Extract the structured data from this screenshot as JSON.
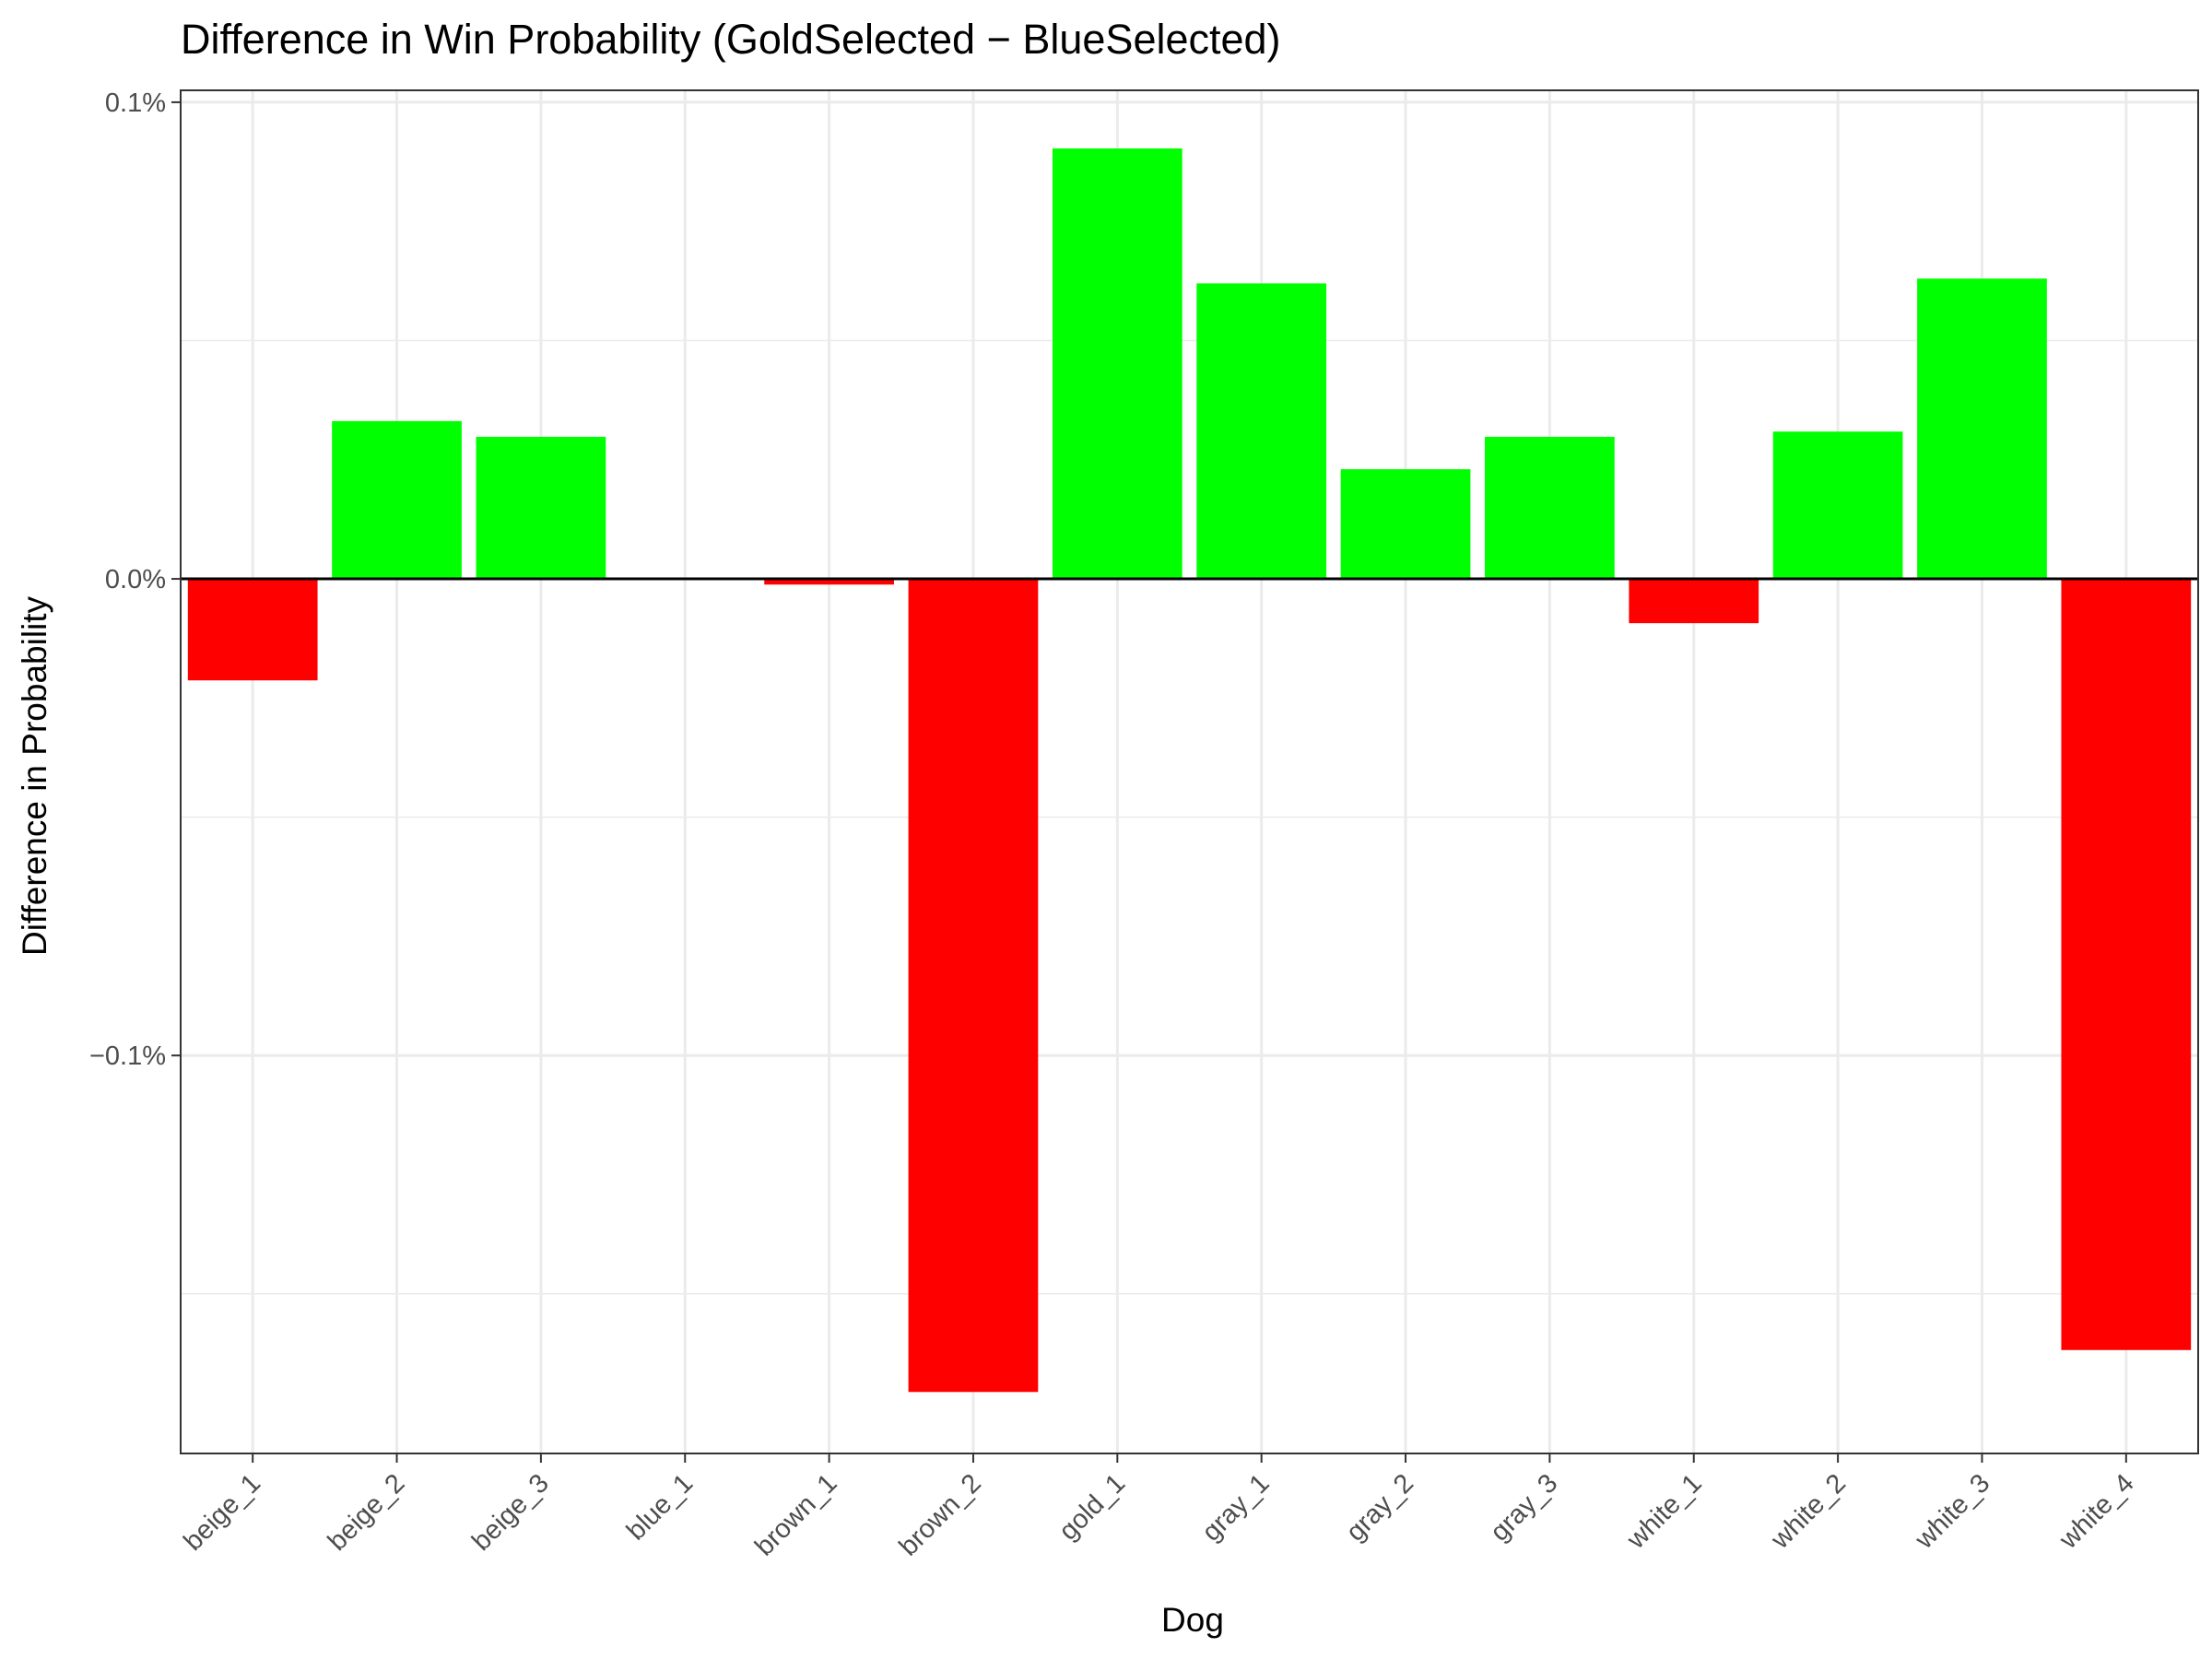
{
  "chart_data": {
    "type": "bar",
    "title": "Difference in Win Probability (GoldSelected − BlueSelected)",
    "xlabel": "Dog",
    "ylabel": "Difference in Probability",
    "categories": [
      "beige_1",
      "beige_2",
      "beige_3",
      "blue_1",
      "brown_1",
      "brown_2",
      "gold_1",
      "gray_1",
      "gray_2",
      "gray_3",
      "white_1",
      "white_2",
      "white_3",
      "white_4"
    ],
    "values": [
      -0.0213,
      0.0331,
      0.0298,
      0.0,
      -0.0012,
      -0.1706,
      0.0903,
      0.062,
      0.023,
      0.0298,
      -0.0093,
      0.0309,
      0.063,
      -0.1618
    ],
    "unit": "%",
    "ylim": [
      -0.1835,
      0.1025
    ],
    "yticks": [
      0.1,
      0.0,
      -0.1
    ],
    "ytick_labels": [
      "0.1%",
      "0.0%",
      "−0.1%"
    ],
    "y_minor_gridlines": [
      0.05,
      -0.05,
      -0.15
    ],
    "grid": true,
    "zero_line": true,
    "positive_color": "#00ff00",
    "negative_color": "#ff0000",
    "legend": "none"
  }
}
